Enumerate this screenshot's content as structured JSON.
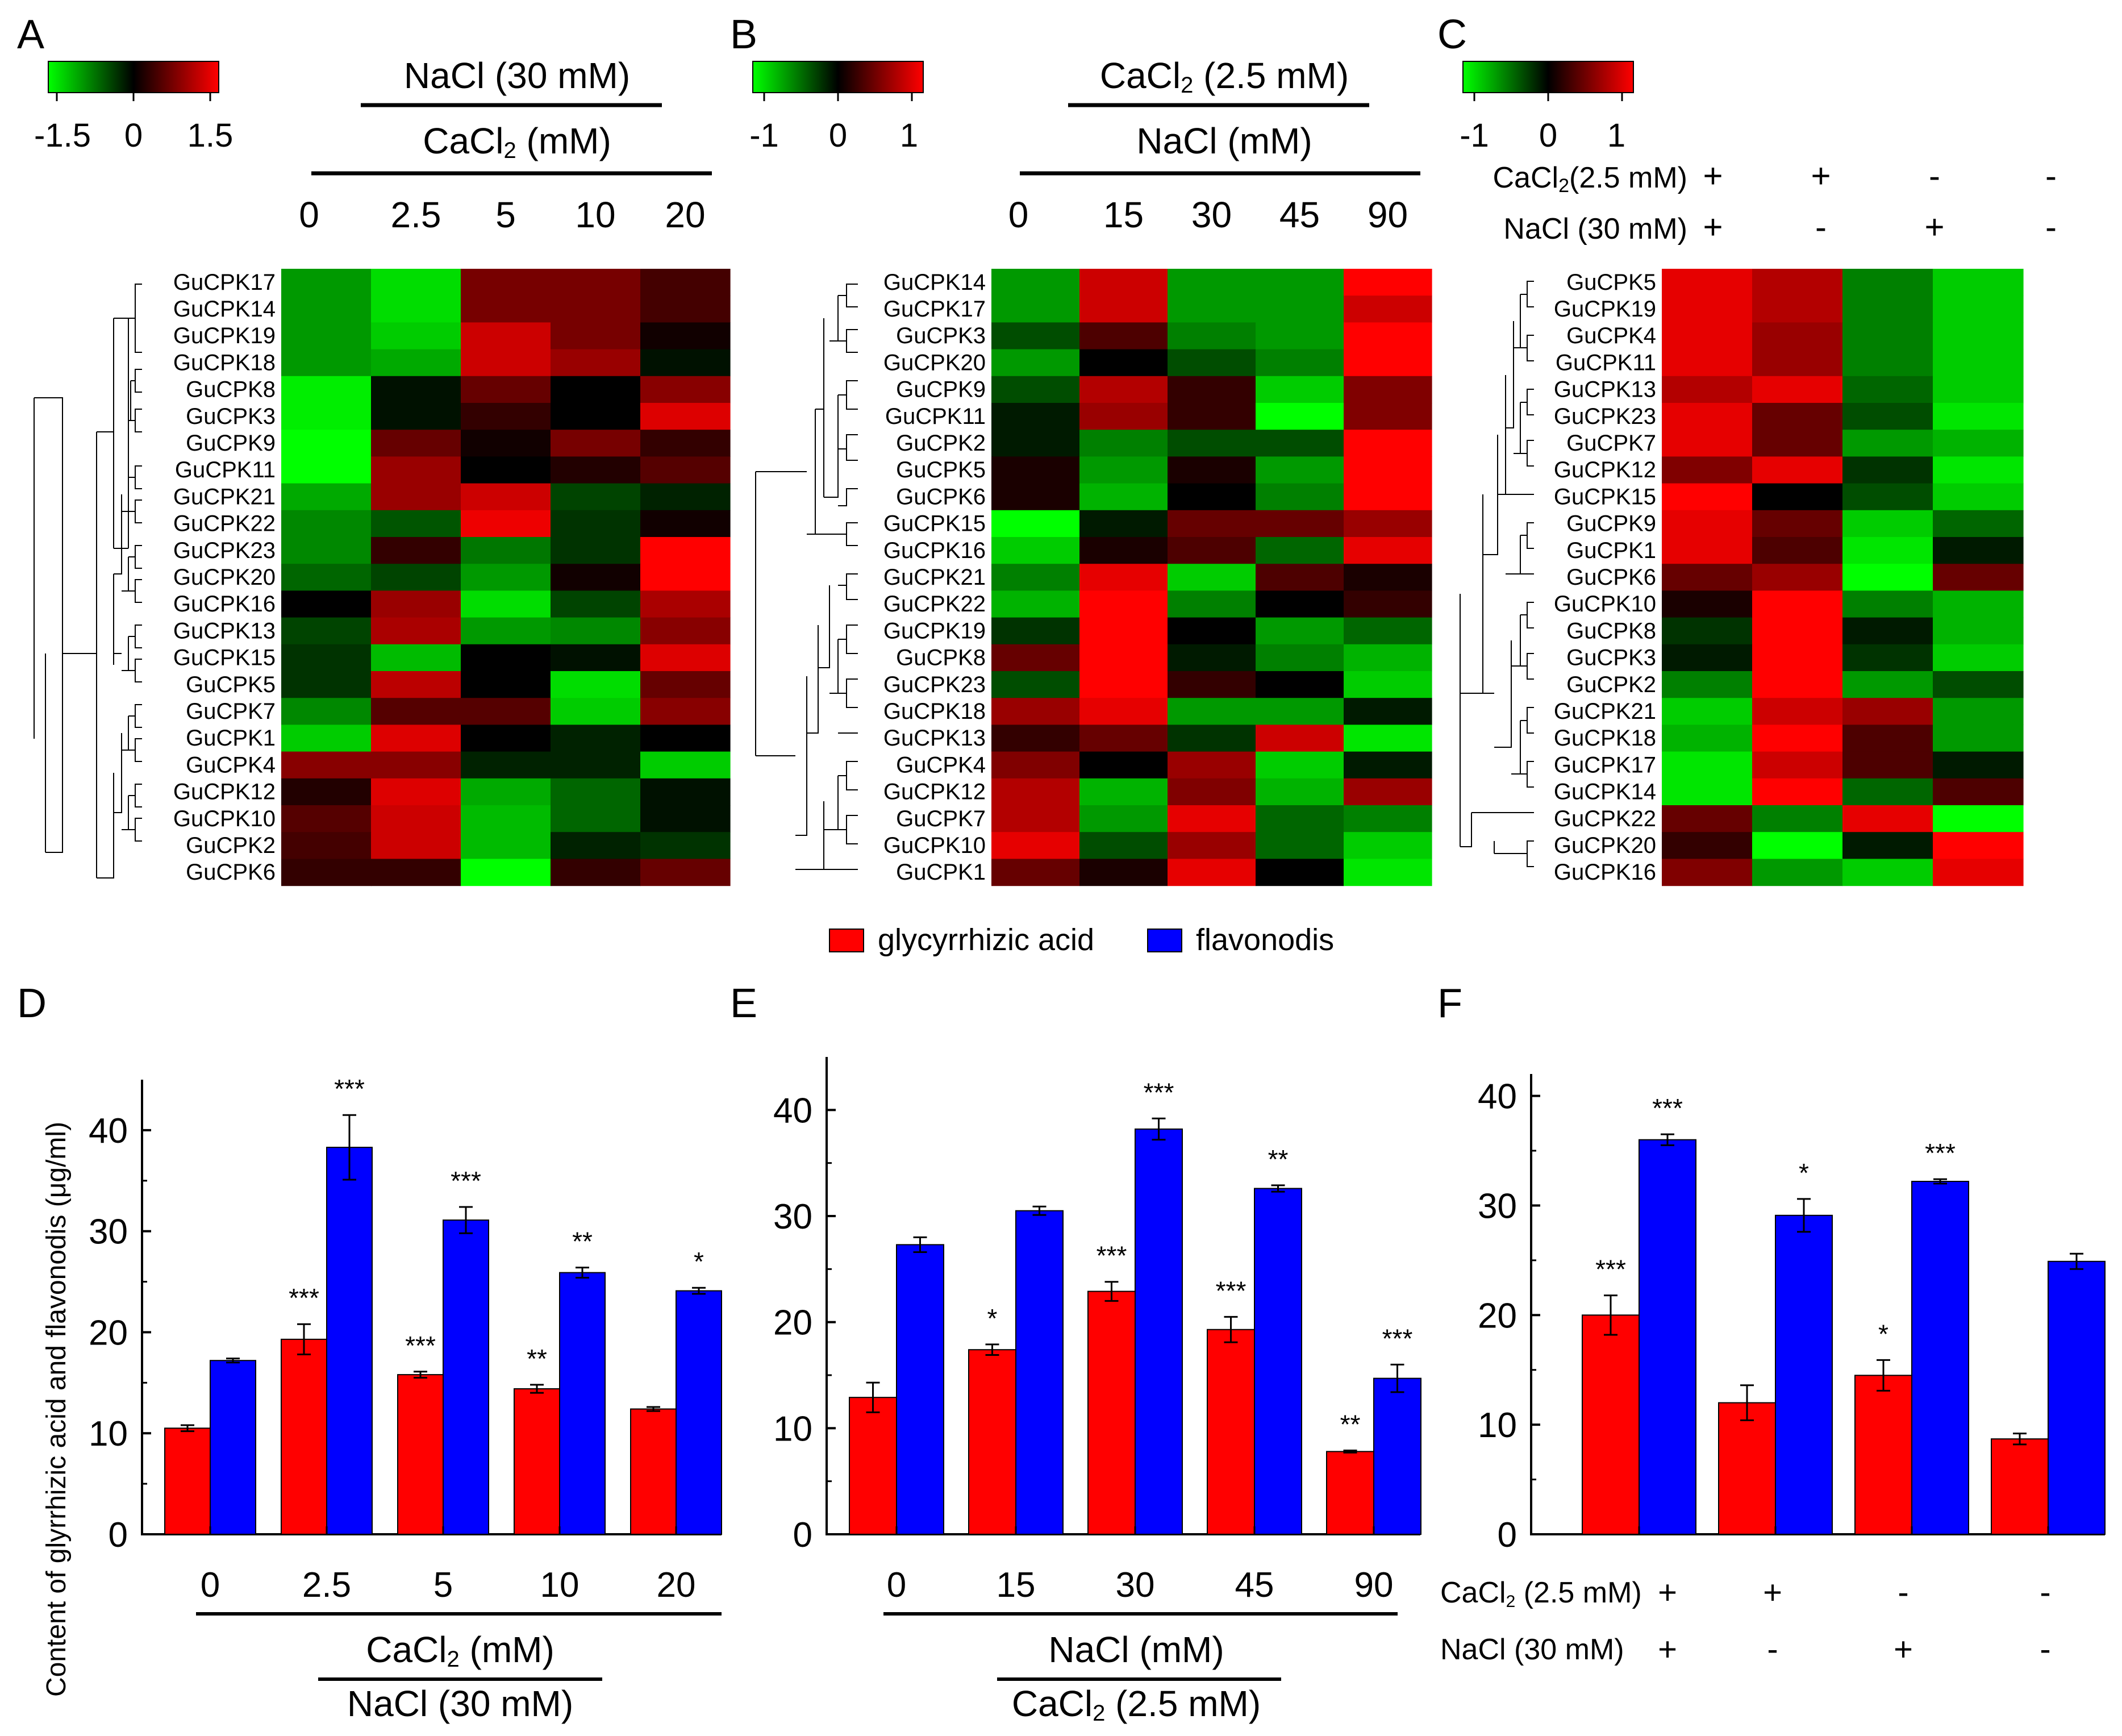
{
  "colors": {
    "green": "#00ff00",
    "black": "#000000",
    "red": "#ff0000",
    "glycyrrhizic": "#ff0000",
    "flavonoids": "#0000ff"
  },
  "legend": {
    "glycyrrhizic": "glycyrrhizic acid",
    "flavonoids": "flavonodis"
  },
  "y_axis_label": "Content of glyrrhizic acid and flavonodis (μg/ml)",
  "heatmaps": [
    {
      "letter": "A",
      "colorbar_ticks": [
        "-1.5",
        "0",
        "1.5"
      ],
      "colorbar_range": [
        -1.5,
        1.5
      ],
      "title_top": "NaCl (30 mM)",
      "title_bottom_main": "CaCl",
      "title_bottom_sub": "2",
      "title_bottom_rest": " (mM)",
      "columns": [
        "0",
        "2.5",
        "5",
        "10",
        "20"
      ],
      "genes": [
        "GuCPK17",
        "GuCPK14",
        "GuCPK19",
        "GuCPK18",
        "GuCPK8",
        "GuCPK3",
        "GuCPK9",
        "GuCPK11",
        "GuCPK21",
        "GuCPK22",
        "GuCPK23",
        "GuCPK20",
        "GuCPK16",
        "GuCPK13",
        "GuCPK15",
        "GuCPK5",
        "GuCPK7",
        "GuCPK1",
        "GuCPK4",
        "GuCPK12",
        "GuCPK10",
        "GuCPK2",
        "GuCPK6"
      ],
      "values": [
        [
          -0.9,
          -1.3,
          0.7,
          0.7,
          0.4
        ],
        [
          -0.9,
          -1.3,
          0.7,
          0.7,
          0.4
        ],
        [
          -0.9,
          -1.2,
          1.2,
          0.7,
          0.1
        ],
        [
          -0.9,
          -1.0,
          1.2,
          0.9,
          -0.1
        ],
        [
          -1.4,
          -0.1,
          0.6,
          0.0,
          0.8
        ],
        [
          -1.4,
          -0.1,
          0.3,
          0.0,
          1.3
        ],
        [
          -1.5,
          0.6,
          0.1,
          0.7,
          0.3
        ],
        [
          -1.5,
          0.9,
          0.0,
          0.2,
          0.5
        ],
        [
          -1.0,
          0.9,
          1.2,
          -0.4,
          -0.2
        ],
        [
          -0.8,
          -0.5,
          1.4,
          -0.3,
          0.1
        ],
        [
          -0.8,
          0.3,
          -0.7,
          -0.3,
          1.5
        ],
        [
          -0.6,
          -0.4,
          -0.9,
          0.1,
          1.5
        ],
        [
          0.0,
          0.9,
          -1.3,
          -0.4,
          1.0
        ],
        [
          -0.4,
          1.0,
          -0.9,
          -0.8,
          0.8
        ],
        [
          -0.3,
          -1.1,
          0.0,
          -0.1,
          1.3
        ],
        [
          -0.3,
          1.1,
          0.0,
          -1.3,
          0.6
        ],
        [
          -0.8,
          0.5,
          0.5,
          -1.2,
          0.8
        ],
        [
          -1.2,
          1.3,
          0.0,
          -0.2,
          0.0
        ],
        [
          0.8,
          0.8,
          -0.2,
          -0.2,
          -1.2
        ],
        [
          0.2,
          1.3,
          -1.0,
          -0.6,
          -0.1
        ],
        [
          0.5,
          1.2,
          -1.1,
          -0.6,
          -0.1
        ],
        [
          0.4,
          1.2,
          -1.1,
          -0.2,
          -0.3
        ],
        [
          0.3,
          0.3,
          -1.5,
          0.3,
          0.6
        ]
      ]
    },
    {
      "letter": "B",
      "colorbar_ticks": [
        "-1",
        "0",
        "1"
      ],
      "colorbar_range": [
        -1,
        1
      ],
      "title_top_main": "CaCl",
      "title_top_sub": "2",
      "title_top_rest": " (2.5 mM)",
      "title_bottom": "NaCl (mM)",
      "columns": [
        "0",
        "15",
        "30",
        "45",
        "90"
      ],
      "genes": [
        "GuCPK14",
        "GuCPK17",
        "GuCPK3",
        "GuCPK20",
        "GuCPK9",
        "GuCPK11",
        "GuCPK2",
        "GuCPK5",
        "GuCPK6",
        "GuCPK15",
        "GuCPK16",
        "GuCPK21",
        "GuCPK22",
        "GuCPK19",
        "GuCPK8",
        "GuCPK23",
        "GuCPK18",
        "GuCPK13",
        "GuCPK4",
        "GuCPK12",
        "GuCPK7",
        "GuCPK10",
        "GuCPK1"
      ],
      "values": [
        [
          -0.6,
          0.8,
          -0.6,
          -0.6,
          1.0
        ],
        [
          -0.6,
          0.8,
          -0.6,
          -0.6,
          0.8
        ],
        [
          -0.3,
          0.3,
          -0.5,
          -0.6,
          1.0
        ],
        [
          -0.6,
          0.0,
          -0.3,
          -0.5,
          1.0
        ],
        [
          -0.3,
          0.7,
          0.2,
          -0.8,
          0.5
        ],
        [
          -0.1,
          0.6,
          0.2,
          -1.0,
          0.5
        ],
        [
          -0.1,
          -0.5,
          -0.3,
          -0.3,
          1.0
        ],
        [
          0.1,
          -0.6,
          0.1,
          -0.6,
          1.0
        ],
        [
          0.1,
          -0.7,
          0.0,
          -0.5,
          1.0
        ],
        [
          -1.0,
          -0.1,
          0.4,
          0.4,
          0.6
        ],
        [
          -0.8,
          0.1,
          0.3,
          -0.4,
          0.9
        ],
        [
          -0.5,
          0.9,
          -0.8,
          0.3,
          0.1
        ],
        [
          -0.7,
          1.0,
          -0.5,
          0.0,
          0.2
        ],
        [
          -0.2,
          1.0,
          0.0,
          -0.6,
          -0.4
        ],
        [
          0.4,
          1.0,
          -0.1,
          -0.5,
          -0.7
        ],
        [
          -0.3,
          1.0,
          0.2,
          0.0,
          -0.8
        ],
        [
          0.6,
          0.9,
          -0.6,
          -0.6,
          -0.1
        ],
        [
          0.2,
          0.4,
          -0.2,
          0.8,
          -0.9
        ],
        [
          0.5,
          0.0,
          0.6,
          -0.8,
          -0.1
        ],
        [
          0.7,
          -0.7,
          0.5,
          -0.7,
          0.6
        ],
        [
          0.7,
          -0.6,
          0.9,
          -0.4,
          -0.5
        ],
        [
          0.9,
          -0.3,
          0.6,
          -0.4,
          -0.8
        ],
        [
          0.4,
          0.1,
          0.9,
          0.0,
          -0.9
        ]
      ]
    },
    {
      "letter": "C",
      "colorbar_ticks": [
        "-1",
        "0",
        "1"
      ],
      "colorbar_range": [
        -1,
        1
      ],
      "row1_main": "CaCl",
      "row1_sub": "2",
      "row1_rest": "(2.5 mM)",
      "row2": "NaCl  (30 mM)",
      "row1_signs": [
        "+",
        "+",
        "-",
        "-"
      ],
      "row2_signs": [
        "+",
        "-",
        "+",
        "-"
      ],
      "genes": [
        "GuCPK5",
        "GuCPK19",
        "GuCPK4",
        "GuCPK11",
        "GuCPK13",
        "GuCPK23",
        "GuCPK7",
        "GuCPK12",
        "GuCPK15",
        "GuCPK9",
        "GuCPK1",
        "GuCPK6",
        "GuCPK10",
        "GuCPK8",
        "GuCPK3",
        "GuCPK2",
        "GuCPK21",
        "GuCPK18",
        "GuCPK17",
        "GuCPK14",
        "GuCPK22",
        "GuCPK20",
        "GuCPK16"
      ],
      "values": [
        [
          0.9,
          0.7,
          -0.5,
          -0.8
        ],
        [
          0.9,
          0.7,
          -0.5,
          -0.8
        ],
        [
          0.9,
          0.6,
          -0.5,
          -0.8
        ],
        [
          0.9,
          0.6,
          -0.5,
          -0.8
        ],
        [
          0.7,
          0.9,
          -0.4,
          -0.8
        ],
        [
          0.9,
          0.4,
          -0.3,
          -0.9
        ],
        [
          0.9,
          0.4,
          -0.6,
          -0.7
        ],
        [
          0.5,
          0.9,
          -0.2,
          -0.9
        ],
        [
          1.0,
          0.0,
          -0.3,
          -0.8
        ],
        [
          0.9,
          0.4,
          -0.8,
          -0.4
        ],
        [
          0.9,
          0.3,
          -0.9,
          -0.1
        ],
        [
          0.4,
          0.6,
          -1.0,
          0.4
        ],
        [
          0.1,
          1.0,
          -0.5,
          -0.7
        ],
        [
          -0.2,
          1.0,
          -0.1,
          -0.7
        ],
        [
          -0.1,
          1.0,
          -0.2,
          -0.8
        ],
        [
          -0.5,
          1.0,
          -0.6,
          -0.3
        ],
        [
          -0.8,
          0.8,
          0.6,
          -0.6
        ],
        [
          -0.7,
          1.0,
          0.3,
          -0.6
        ],
        [
          -0.9,
          0.8,
          0.3,
          -0.1
        ],
        [
          -0.9,
          1.0,
          -0.4,
          0.3
        ],
        [
          0.4,
          -0.5,
          0.9,
          -1.0
        ],
        [
          0.2,
          -1.0,
          -0.1,
          1.0
        ],
        [
          0.5,
          -0.6,
          -0.8,
          0.9
        ]
      ]
    }
  ],
  "chart_data": [
    {
      "type": "bar",
      "letter": "D",
      "categories": [
        "0",
        "2.5",
        "5",
        "10",
        "20"
      ],
      "series": [
        {
          "name": "glycyrrhizic acid",
          "values": [
            10.5,
            19.3,
            15.8,
            14.4,
            12.4
          ],
          "errors": [
            0.3,
            1.5,
            0.3,
            0.4,
            0.2
          ],
          "stars": [
            "",
            "***",
            "***",
            "**",
            ""
          ]
        },
        {
          "name": "flavonodis",
          "values": [
            17.2,
            38.3,
            31.1,
            25.9,
            24.1
          ],
          "errors": [
            0.2,
            3.2,
            1.3,
            0.5,
            0.3
          ],
          "stars": [
            "",
            "***",
            "***",
            "**",
            "*"
          ]
        }
      ],
      "ylim": [
        0,
        45
      ],
      "yticks": [
        "0",
        "10",
        "20",
        "30",
        "40"
      ],
      "ytick_values": [
        0,
        10,
        20,
        30,
        40
      ],
      "xlabel_line1_main": "CaCl",
      "xlabel_line1_sub": "2",
      "xlabel_line1_rest": " (mM)",
      "xlabel_line2": "NaCl (30 mM)"
    },
    {
      "type": "bar",
      "letter": "E",
      "categories": [
        "0",
        "15",
        "30",
        "45",
        "90"
      ],
      "series": [
        {
          "name": "glycyrrhizic acid",
          "values": [
            12.9,
            17.4,
            22.9,
            19.3,
            7.8
          ],
          "errors": [
            1.4,
            0.5,
            0.9,
            1.2,
            0.1
          ],
          "stars": [
            "",
            "*",
            "***",
            "***",
            "**"
          ]
        },
        {
          "name": "flavonodis",
          "values": [
            27.3,
            30.5,
            38.2,
            32.6,
            14.7
          ],
          "errors": [
            0.7,
            0.4,
            1.0,
            0.3,
            1.3
          ],
          "stars": [
            "",
            "",
            "***",
            "**",
            "***"
          ]
        }
      ],
      "ylim": [
        0,
        45
      ],
      "yticks": [
        "0",
        "10",
        "20",
        "30",
        "40"
      ],
      "ytick_values": [
        0,
        10,
        20,
        30,
        40
      ],
      "xlabel_line1": "NaCl (mM)",
      "xlabel_line2_main": "CaCl",
      "xlabel_line2_sub": "2",
      "xlabel_line2_rest": " (2.5 mM)"
    },
    {
      "type": "bar",
      "letter": "F",
      "categories": [
        "CaCl2+ NaCl+",
        "CaCl2+ NaCl-",
        "CaCl2- NaCl+",
        "CaCl2- NaCl-"
      ],
      "series": [
        {
          "name": "glycyrrhizic acid",
          "values": [
            20.0,
            12.0,
            14.5,
            8.7
          ],
          "errors": [
            1.8,
            1.6,
            1.4,
            0.5
          ],
          "stars": [
            "***",
            "",
            "*",
            ""
          ]
        },
        {
          "name": "flavonodis",
          "values": [
            36.0,
            29.1,
            32.2,
            24.9
          ],
          "errors": [
            0.5,
            1.5,
            0.2,
            0.7
          ],
          "stars": [
            "***",
            "*",
            "***",
            ""
          ]
        }
      ],
      "ylim": [
        0,
        42
      ],
      "yticks": [
        "0",
        "10",
        "20",
        "30",
        "40"
      ],
      "ytick_values": [
        0,
        10,
        20,
        30,
        40
      ],
      "row1_main": "CaCl",
      "row1_sub": "2",
      "row1_rest": " (2.5 mM)",
      "row2": "NaCl  (30 mM)",
      "row1_signs": [
        "+",
        "+",
        "-",
        "-"
      ],
      "row2_signs": [
        "+",
        "-",
        "+",
        "-"
      ]
    }
  ]
}
